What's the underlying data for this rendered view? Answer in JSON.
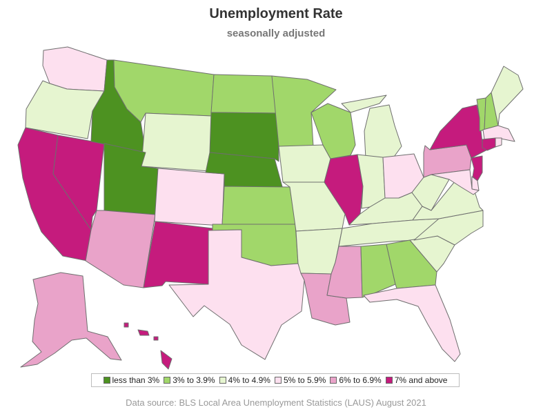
{
  "title": "Unemployment Rate",
  "subtitle": "seasonally adjusted",
  "footer": "Data source: BLS Local Area Unemployment Statistics (LAUS) August 2021",
  "legend": [
    {
      "label": "less than 3%",
      "color": "#4d9221"
    },
    {
      "label": "3% to 3.9%",
      "color": "#a1d76a"
    },
    {
      "label": "4% to 4.9%",
      "color": "#e6f5d0"
    },
    {
      "label": "5% to 5.9%",
      "color": "#fde0ef"
    },
    {
      "label": "6% to 6.9%",
      "color": "#e9a3c9"
    },
    {
      "label": "7% and above",
      "color": "#c51b7d"
    }
  ],
  "states": [
    {
      "name": "Washington",
      "class": 3
    },
    {
      "name": "Oregon",
      "class": 2
    },
    {
      "name": "California",
      "class": 5
    },
    {
      "name": "Nevada",
      "class": 5
    },
    {
      "name": "Idaho",
      "class": 0
    },
    {
      "name": "Montana",
      "class": 1
    },
    {
      "name": "Wyoming",
      "class": 2
    },
    {
      "name": "Utah",
      "class": 0
    },
    {
      "name": "Arizona",
      "class": 4
    },
    {
      "name": "Colorado",
      "class": 3
    },
    {
      "name": "New Mexico",
      "class": 5
    },
    {
      "name": "North Dakota",
      "class": 1
    },
    {
      "name": "South Dakota",
      "class": 0
    },
    {
      "name": "Nebraska",
      "class": 0
    },
    {
      "name": "Kansas",
      "class": 1
    },
    {
      "name": "Oklahoma",
      "class": 1
    },
    {
      "name": "Texas",
      "class": 3
    },
    {
      "name": "Minnesota",
      "class": 1
    },
    {
      "name": "Iowa",
      "class": 2
    },
    {
      "name": "Missouri",
      "class": 2
    },
    {
      "name": "Arkansas",
      "class": 2
    },
    {
      "name": "Louisiana",
      "class": 4
    },
    {
      "name": "Wisconsin",
      "class": 1
    },
    {
      "name": "Illinois",
      "class": 5
    },
    {
      "name": "Michigan",
      "class": 2
    },
    {
      "name": "Indiana",
      "class": 2
    },
    {
      "name": "Ohio",
      "class": 3
    },
    {
      "name": "Kentucky",
      "class": 2
    },
    {
      "name": "Tennessee",
      "class": 2
    },
    {
      "name": "Mississippi",
      "class": 4
    },
    {
      "name": "Alabama",
      "class": 1
    },
    {
      "name": "Georgia",
      "class": 1
    },
    {
      "name": "Florida",
      "class": 3
    },
    {
      "name": "South Carolina",
      "class": 2
    },
    {
      "name": "North Carolina",
      "class": 2
    },
    {
      "name": "Virginia",
      "class": 2
    },
    {
      "name": "West Virginia",
      "class": 2
    },
    {
      "name": "Pennsylvania",
      "class": 4
    },
    {
      "name": "New York",
      "class": 5
    },
    {
      "name": "Vermont",
      "class": 1
    },
    {
      "name": "New Hampshire",
      "class": 1
    },
    {
      "name": "Maine",
      "class": 2
    },
    {
      "name": "Massachusetts",
      "class": 3
    },
    {
      "name": "Connecticut",
      "class": 5
    },
    {
      "name": "Rhode Island",
      "class": 3
    },
    {
      "name": "New Jersey",
      "class": 5
    },
    {
      "name": "Delaware",
      "class": 3
    },
    {
      "name": "Maryland",
      "class": 3
    },
    {
      "name": "Alaska",
      "class": 4
    },
    {
      "name": "Hawaii",
      "class": 5
    }
  ]
}
